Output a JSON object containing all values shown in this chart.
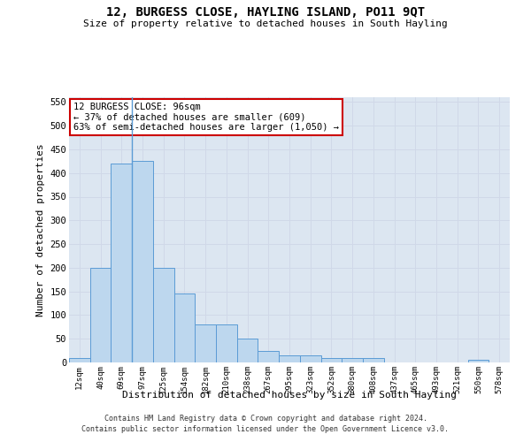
{
  "title": "12, BURGESS CLOSE, HAYLING ISLAND, PO11 9QT",
  "subtitle": "Size of property relative to detached houses in South Hayling",
  "xlabel": "Distribution of detached houses by size in South Hayling",
  "ylabel": "Number of detached properties",
  "footer_line1": "Contains HM Land Registry data © Crown copyright and database right 2024.",
  "footer_line2": "Contains public sector information licensed under the Open Government Licence v3.0.",
  "categories": [
    "12sqm",
    "40sqm",
    "69sqm",
    "97sqm",
    "125sqm",
    "154sqm",
    "182sqm",
    "210sqm",
    "238sqm",
    "267sqm",
    "295sqm",
    "323sqm",
    "352sqm",
    "380sqm",
    "408sqm",
    "437sqm",
    "465sqm",
    "493sqm",
    "521sqm",
    "550sqm",
    "578sqm"
  ],
  "values": [
    10,
    200,
    420,
    425,
    200,
    145,
    80,
    80,
    50,
    25,
    15,
    15,
    10,
    10,
    10,
    0,
    0,
    0,
    0,
    5,
    0
  ],
  "bar_color": "#bdd7ee",
  "bar_edge_color": "#5b9bd5",
  "grid_color": "#d0d8e8",
  "background_color": "#dce6f1",
  "annotation_text": "12 BURGESS CLOSE: 96sqm\n← 37% of detached houses are smaller (609)\n63% of semi-detached houses are larger (1,050) →",
  "annotation_box_color": "#ffffff",
  "annotation_box_edge": "#cc0000",
  "vline_x_index": 2.5,
  "ylim": [
    0,
    560
  ],
  "yticks": [
    0,
    50,
    100,
    150,
    200,
    250,
    300,
    350,
    400,
    450,
    500,
    550
  ]
}
